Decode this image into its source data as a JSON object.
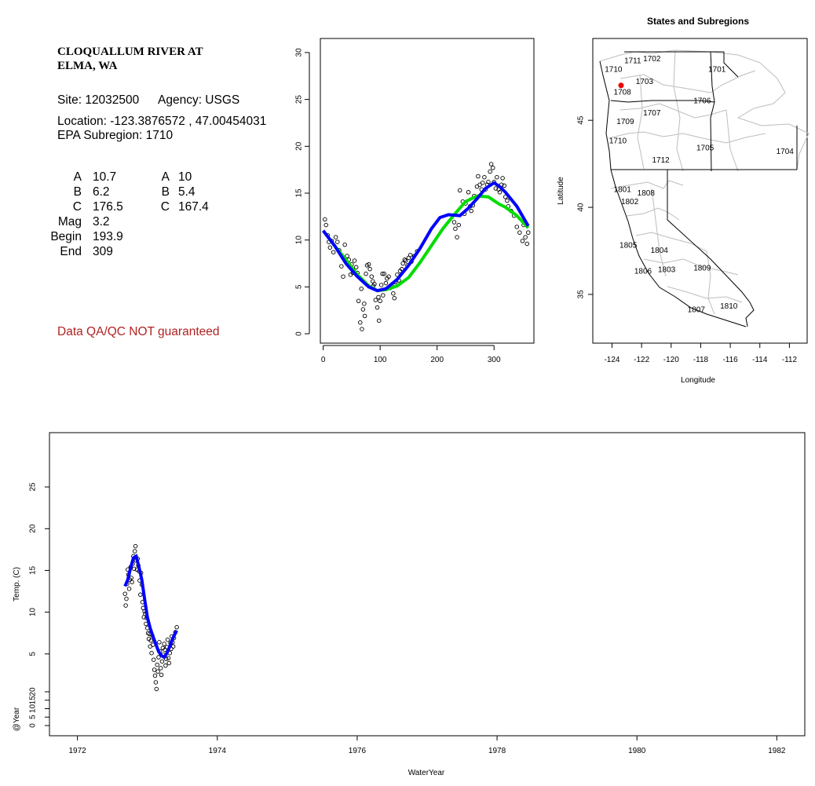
{
  "station": {
    "title_lines": [
      "CLOQUALLUM RIVER AT",
      "ELMA, WA"
    ],
    "site_line": "Site: 12032500",
    "agency_line": "Agency: USGS",
    "location_line": "Location: -123.3876572 , 47.00454031",
    "subregion_line": "EPA Subregion: 1710",
    "params_left": [
      {
        "label": "A",
        "value": "10.7"
      },
      {
        "label": "B",
        "value": "6.2"
      },
      {
        "label": "C",
        "value": "176.5"
      },
      {
        "label": "Mag",
        "value": "3.2"
      },
      {
        "label": "Begin",
        "value": "193.9"
      },
      {
        "label": "End",
        "value": "309"
      }
    ],
    "params_right": [
      {
        "label": "A",
        "value": "10"
      },
      {
        "label": "B",
        "value": "5.4"
      },
      {
        "label": "C",
        "value": "167.4"
      }
    ],
    "warning": "Data QA/QC NOT guaranteed",
    "warning_color": "#b22222"
  },
  "chart_data": [
    {
      "type": "scatter",
      "title": "",
      "xlabel": "",
      "ylabel": "",
      "xlim": [
        -5,
        370
      ],
      "ylim": [
        -1,
        31.5
      ],
      "xticks": [
        0,
        100,
        200,
        300
      ],
      "yticks": [
        0,
        5,
        10,
        15,
        20,
        25,
        30
      ],
      "series": [
        {
          "color": "#000000",
          "style": "open-circle",
          "x": [
            3,
            5,
            8,
            10,
            12,
            15,
            18,
            22,
            25,
            28,
            32,
            35,
            38,
            42,
            45,
            48,
            50,
            52,
            55,
            58,
            60,
            62,
            65,
            67,
            68,
            70,
            72,
            73,
            75,
            77,
            80,
            82,
            85,
            87,
            88,
            90,
            92,
            95,
            97,
            98,
            100,
            102,
            104,
            105,
            107,
            110,
            112,
            115,
            118,
            120,
            123,
            125,
            127,
            130,
            133,
            135,
            138,
            140,
            143,
            145,
            148,
            150,
            153,
            155,
            160,
            165,
            230,
            232,
            235,
            238,
            240,
            245,
            248,
            250,
            255,
            258,
            260,
            263,
            265,
            270,
            272,
            275,
            278,
            280,
            283,
            285,
            288,
            290,
            293,
            295,
            298,
            300,
            303,
            305,
            308,
            310,
            313,
            315,
            318,
            320,
            323,
            325,
            330,
            335,
            340,
            345,
            350,
            352,
            355,
            358,
            360
          ],
          "y": [
            12.2,
            11.6,
            10.5,
            9.8,
            9.2,
            9.9,
            8.7,
            10.3,
            9.8,
            8.9,
            7.2,
            6.1,
            9.5,
            8.3,
            7.9,
            6.3,
            7.4,
            6.5,
            7.8,
            7.1,
            6.5,
            3.5,
            1.2,
            4.8,
            0.5,
            2.6,
            3.2,
            1.9,
            6.4,
            7.3,
            7.4,
            6.9,
            6.1,
            5.6,
            5.1,
            5.3,
            3.6,
            2.8,
            3.9,
            1.4,
            3.5,
            5.2,
            6.4,
            4.1,
            6.4,
            5.4,
            5.9,
            6.1,
            4.9,
            5.2,
            4.3,
            3.8,
            5.5,
            6.3,
            5.7,
            6.7,
            6.9,
            7.5,
            7.9,
            7.8,
            7.3,
            8.1,
            8.4,
            7.7,
            8.3,
            8.8,
            11.9,
            11.2,
            10.3,
            11.6,
            15.3,
            14.1,
            12.8,
            13.9,
            15.1,
            13.6,
            13.1,
            13.7,
            14.7,
            15.7,
            16.8,
            15.9,
            15.4,
            16.1,
            16.7,
            15.4,
            15.9,
            16.2,
            17.3,
            18.1,
            17.7,
            16.2,
            15.5,
            16.7,
            15.4,
            15.1,
            15.9,
            16.6,
            15.8,
            14.6,
            14.2,
            13.6,
            13.1,
            12.6,
            11.4,
            10.8,
            9.9,
            11.6,
            10.3,
            9.6,
            10.8
          ]
        },
        {
          "color": "#00dd00",
          "style": "line",
          "x": [
            0,
            20,
            40,
            60,
            80,
            95,
            110,
            130,
            150,
            170,
            190,
            210,
            230,
            250,
            270,
            290,
            300,
            310,
            320,
            340,
            360
          ],
          "y": [
            11.0,
            9.4,
            7.9,
            6.3,
            5.1,
            4.6,
            4.7,
            5.1,
            6.0,
            7.6,
            9.4,
            11.2,
            12.7,
            14.1,
            14.7,
            14.6,
            14.2,
            13.8,
            13.5,
            12.6,
            11.3
          ]
        },
        {
          "color": "#0000ff",
          "style": "line",
          "x": [
            0,
            20,
            40,
            60,
            80,
            95,
            110,
            130,
            150,
            170,
            190,
            205,
            220,
            240,
            255,
            270,
            285,
            300,
            310,
            320,
            340,
            360
          ],
          "y": [
            11.0,
            9.4,
            7.5,
            6.1,
            5.0,
            4.6,
            4.8,
            5.8,
            7.3,
            9.1,
            11.2,
            12.4,
            12.7,
            12.6,
            13.4,
            14.4,
            15.5,
            16.1,
            15.7,
            15.1,
            13.6,
            11.5
          ]
        }
      ]
    },
    {
      "type": "map",
      "title": "States and Subregions",
      "xlabel": "Longitude",
      "ylabel": "Latitude",
      "xlim": [
        -125.3,
        -110.8
      ],
      "ylim": [
        32.2,
        49.7
      ],
      "xticks": [
        -124,
        -122,
        -120,
        -118,
        -116,
        -114,
        -112
      ],
      "yticks": [
        35,
        40,
        45
      ],
      "regions": [
        {
          "label": "1702",
          "lon": -121.3,
          "lat": 48.5
        },
        {
          "label": "1701",
          "lon": -116.9,
          "lat": 47.9
        },
        {
          "label": "1711",
          "lon": -122.6,
          "lat": 48.4
        },
        {
          "label": "1710",
          "lon": -123.9,
          "lat": 47.9
        },
        {
          "label": "1703",
          "lon": -121.8,
          "lat": 47.2
        },
        {
          "label": "1708",
          "lon": -123.3,
          "lat": 46.6
        },
        {
          "label": "1707",
          "lon": -121.3,
          "lat": 45.4
        },
        {
          "label": "1706",
          "lon": -117.9,
          "lat": 46.1
        },
        {
          "label": "1709",
          "lon": -123.1,
          "lat": 44.9
        },
        {
          "label": "1710",
          "lon": -123.6,
          "lat": 43.8
        },
        {
          "label": "1705",
          "lon": -117.7,
          "lat": 43.4
        },
        {
          "label": "1704",
          "lon": -112.3,
          "lat": 43.2
        },
        {
          "label": "1712",
          "lon": -120.7,
          "lat": 42.7
        },
        {
          "label": "1801",
          "lon": -123.3,
          "lat": 41.0
        },
        {
          "label": "1808",
          "lon": -121.7,
          "lat": 40.8
        },
        {
          "label": "1802",
          "lon": -122.8,
          "lat": 40.3
        },
        {
          "label": "1805",
          "lon": -122.9,
          "lat": 37.8
        },
        {
          "label": "1804",
          "lon": -120.8,
          "lat": 37.5
        },
        {
          "label": "1806",
          "lon": -121.9,
          "lat": 36.3
        },
        {
          "label": "1803",
          "lon": -120.3,
          "lat": 36.4
        },
        {
          "label": "1809",
          "lon": -117.9,
          "lat": 36.5
        },
        {
          "label": "1807",
          "lon": -118.3,
          "lat": 34.1
        },
        {
          "label": "1810",
          "lon": -116.1,
          "lat": 34.3
        }
      ],
      "site": {
        "lon": -123.3876572,
        "lat": 47.00454031,
        "color": "#ee0000"
      }
    },
    {
      "type": "scatter",
      "title": "",
      "xlabel": "WaterYear",
      "ylabel": "Temp. (C)",
      "ylabel2": "@Year",
      "xlim": [
        1971.6,
        1982.4
      ],
      "ylim": [
        -4.8,
        31.5
      ],
      "xticks": [
        1972,
        1974,
        1976,
        1978,
        1980,
        1982
      ],
      "yticks": [
        5,
        10,
        15,
        20,
        25
      ],
      "yticks2": [
        "0",
        "5",
        "10",
        "15",
        "20"
      ],
      "series": [
        {
          "color": "#000000",
          "style": "open-circle",
          "x": [
            1972.68,
            1972.69,
            1972.7,
            1972.71,
            1972.72,
            1972.73,
            1972.74,
            1972.75,
            1972.76,
            1972.77,
            1972.78,
            1972.79,
            1972.8,
            1972.81,
            1972.82,
            1972.83,
            1972.84,
            1972.85,
            1972.86,
            1972.87,
            1972.88,
            1972.89,
            1972.9,
            1972.91,
            1972.92,
            1972.93,
            1972.94,
            1972.95,
            1972.96,
            1972.97,
            1972.98,
            1972.99,
            1973.0,
            1973.01,
            1973.02,
            1973.03,
            1973.04,
            1973.05,
            1973.06,
            1973.07,
            1973.08,
            1973.09,
            1973.1,
            1973.11,
            1973.12,
            1973.13,
            1973.14,
            1973.15,
            1973.16,
            1973.17,
            1973.18,
            1973.19,
            1973.2,
            1973.21,
            1973.22,
            1973.23,
            1973.24,
            1973.25,
            1973.26,
            1973.27,
            1973.28,
            1973.29,
            1973.3,
            1973.31,
            1973.32,
            1973.33,
            1973.34,
            1973.35,
            1973.36,
            1973.37,
            1973.38,
            1973.4,
            1973.42
          ],
          "y": [
            12.2,
            10.8,
            11.6,
            13.4,
            15.1,
            14.5,
            12.8,
            13.9,
            15.4,
            14.1,
            13.6,
            15.8,
            16.7,
            15.2,
            17.3,
            17.9,
            16.2,
            15.1,
            16.4,
            15.6,
            14.9,
            13.8,
            12.1,
            14.7,
            13.3,
            11.2,
            10.5,
            9.4,
            10.1,
            9.8,
            8.6,
            9.3,
            8.1,
            7.5,
            6.8,
            7.4,
            5.9,
            6.6,
            5.1,
            7.2,
            6.1,
            4.3,
            3.1,
            2.4,
            1.6,
            0.8,
            3.7,
            2.9,
            4.6,
            6.4,
            5.3,
            3.3,
            2.5,
            4.1,
            5.7,
            4.9,
            6.2,
            5.5,
            3.6,
            4.4,
            5.8,
            6.7,
            4.5,
            3.9,
            5.1,
            6.3,
            5.6,
            7.1,
            6.4,
            5.9,
            6.9,
            7.6,
            8.2
          ]
        },
        {
          "color": "#0000ff",
          "style": "line",
          "x": [
            1972.68,
            1972.72,
            1972.76,
            1972.8,
            1972.84,
            1972.88,
            1972.92,
            1972.96,
            1973.0,
            1973.04,
            1973.08,
            1973.12,
            1973.16,
            1973.2,
            1973.24,
            1973.28,
            1973.32,
            1973.36,
            1973.4,
            1973.42
          ],
          "y": [
            13.1,
            13.9,
            15.3,
            16.5,
            16.7,
            15.4,
            13.9,
            11.6,
            9.4,
            8.1,
            7.1,
            6.2,
            5.3,
            4.8,
            4.6,
            5.1,
            5.9,
            6.8,
            7.5,
            7.8
          ]
        }
      ]
    }
  ]
}
